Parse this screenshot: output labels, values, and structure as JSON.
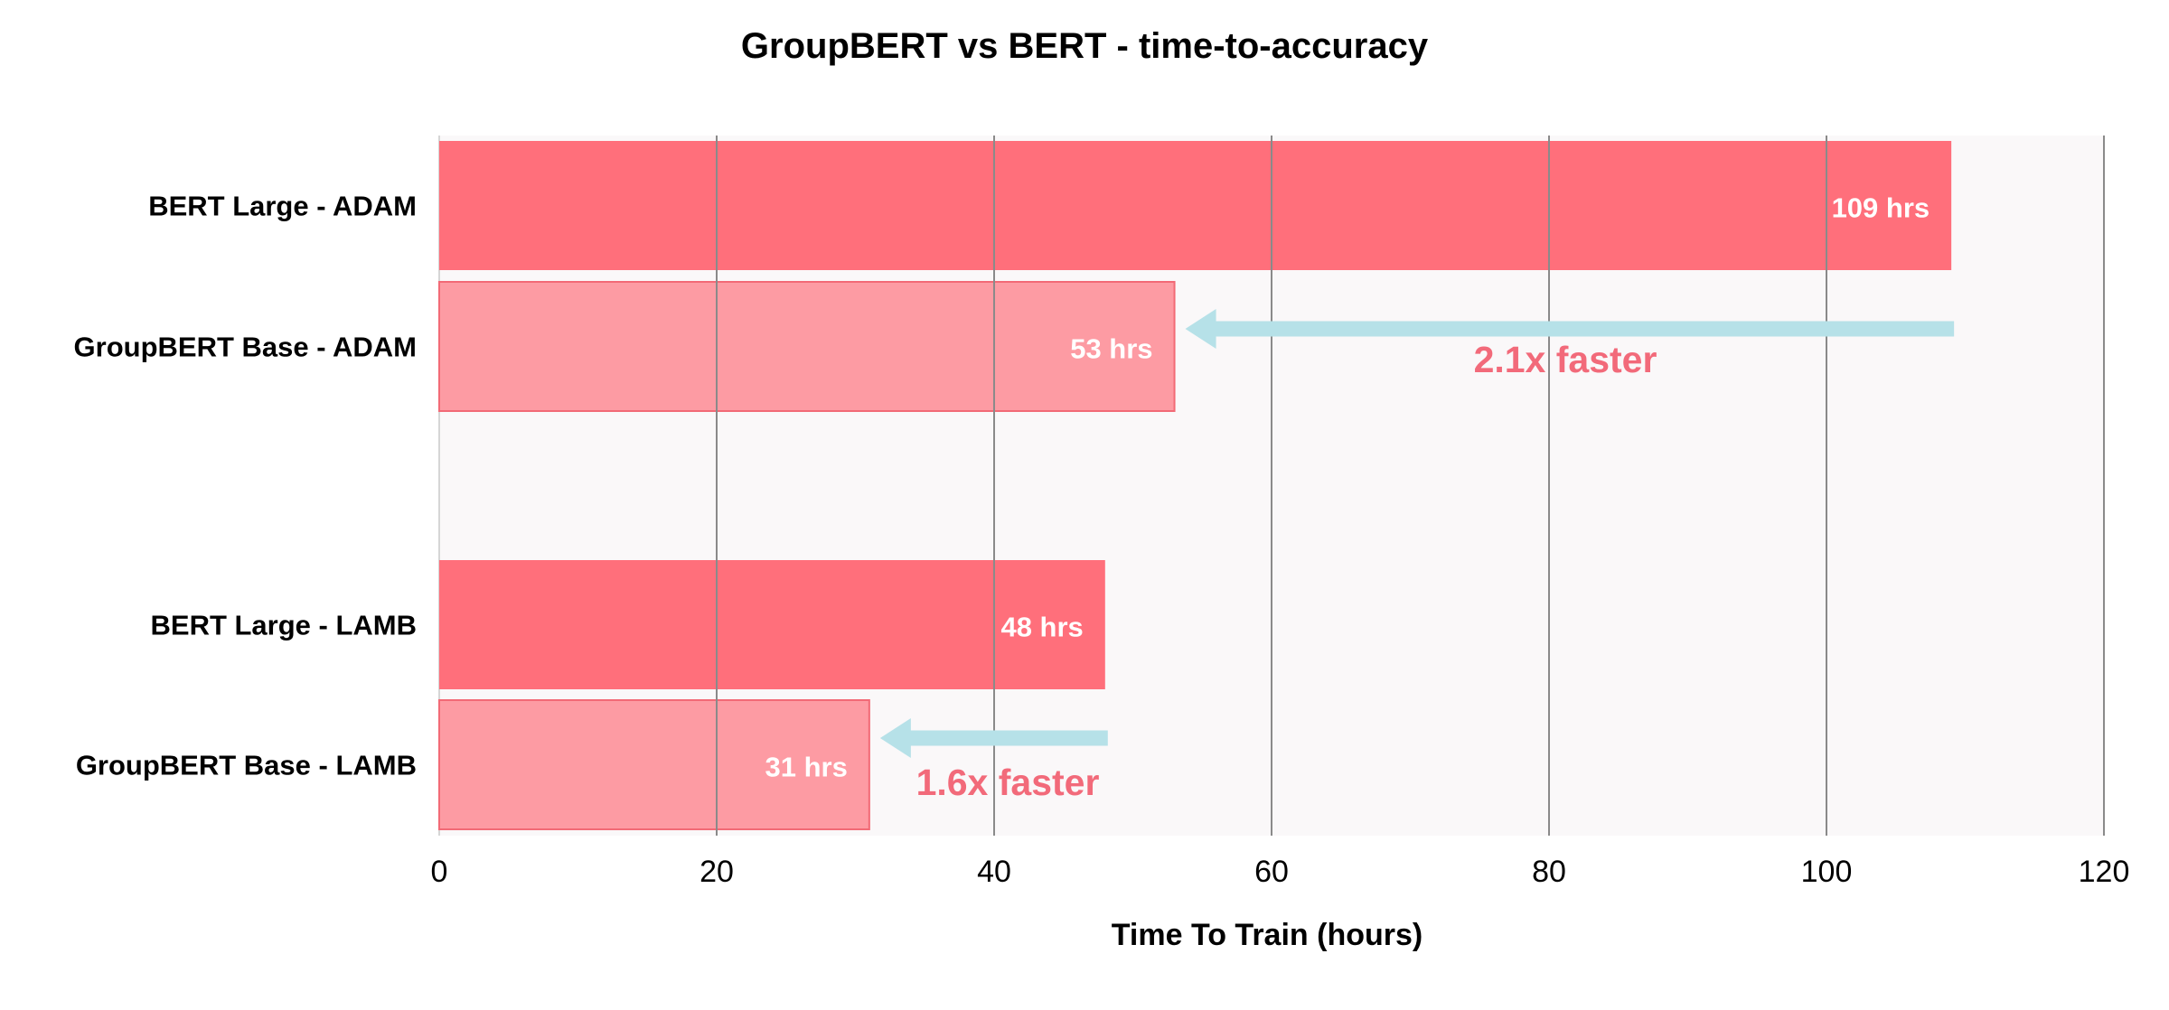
{
  "chart_data": {
    "type": "bar",
    "orientation": "horizontal",
    "title": "GroupBERT vs BERT  - time-to-accuracy",
    "xlabel": "Time To Train (hours)",
    "ylabel": "",
    "xlim": [
      0,
      120
    ],
    "xticks": [
      0,
      20,
      40,
      60,
      80,
      100,
      120
    ],
    "grid": "vertical",
    "categories": [
      "BERT Large - ADAM",
      "GroupBERT Base  - ADAM",
      "BERT Large - LAMB",
      "GroupBERT Base  - LAMB"
    ],
    "values": [
      109,
      53,
      48,
      31
    ],
    "data_labels": [
      "109 hrs",
      "53 hrs",
      "48 hrs",
      "31 hrs"
    ],
    "annotations": [
      {
        "text": "2.1x faster",
        "from_value": 109,
        "to_value": 53
      },
      {
        "text": "1.6x faster",
        "from_value": 48,
        "to_value": 31
      }
    ],
    "colors": {
      "bert_bar": "#ff6f7b",
      "groupbert_bar": "#fd9ba3",
      "groupbert_border": "#f26a76",
      "arrow": "#b6e1e8",
      "annotation_text": "#f26a7a",
      "plot_background": "#faf8f9",
      "grid": "#8a8a8a",
      "label_text": "#000000",
      "bar_label_text": "#ffffff"
    }
  }
}
